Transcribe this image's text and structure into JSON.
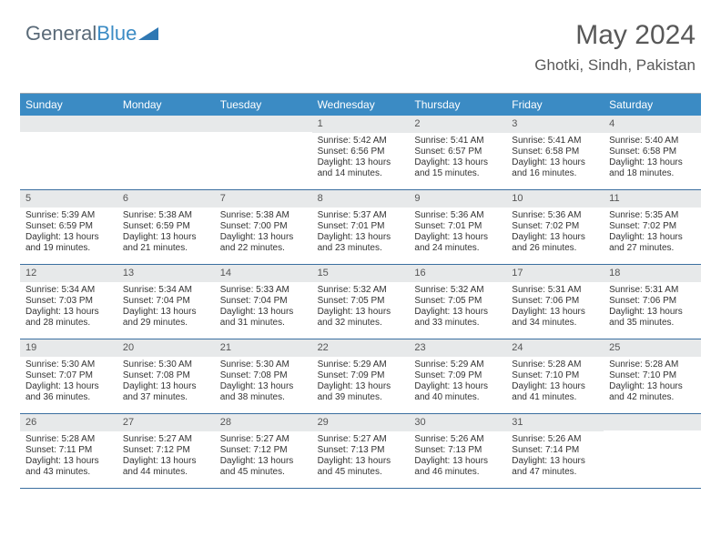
{
  "brand": {
    "part1": "General",
    "part2": "Blue"
  },
  "header": {
    "month_title": "May 2024",
    "location": "Ghotki, Sindh, Pakistan"
  },
  "colors": {
    "header_bg": "#3b8bc4",
    "header_fg": "#ffffff",
    "daynum_bg": "#e7e9ea",
    "cell_border": "#3b6fa0",
    "text": "#333333",
    "title_color": "#585858",
    "logo_grey": "#5a6a78"
  },
  "weekdays": [
    "Sunday",
    "Monday",
    "Tuesday",
    "Wednesday",
    "Thursday",
    "Friday",
    "Saturday"
  ],
  "grid": {
    "columns": 7,
    "rows": 5,
    "first_weekday_index": 3,
    "days_in_month": 31
  },
  "days": [
    {
      "n": 1,
      "sunrise": "5:42 AM",
      "sunset": "6:56 PM",
      "daylight": "13 hours and 14 minutes."
    },
    {
      "n": 2,
      "sunrise": "5:41 AM",
      "sunset": "6:57 PM",
      "daylight": "13 hours and 15 minutes."
    },
    {
      "n": 3,
      "sunrise": "5:41 AM",
      "sunset": "6:58 PM",
      "daylight": "13 hours and 16 minutes."
    },
    {
      "n": 4,
      "sunrise": "5:40 AM",
      "sunset": "6:58 PM",
      "daylight": "13 hours and 18 minutes."
    },
    {
      "n": 5,
      "sunrise": "5:39 AM",
      "sunset": "6:59 PM",
      "daylight": "13 hours and 19 minutes."
    },
    {
      "n": 6,
      "sunrise": "5:38 AM",
      "sunset": "6:59 PM",
      "daylight": "13 hours and 21 minutes."
    },
    {
      "n": 7,
      "sunrise": "5:38 AM",
      "sunset": "7:00 PM",
      "daylight": "13 hours and 22 minutes."
    },
    {
      "n": 8,
      "sunrise": "5:37 AM",
      "sunset": "7:01 PM",
      "daylight": "13 hours and 23 minutes."
    },
    {
      "n": 9,
      "sunrise": "5:36 AM",
      "sunset": "7:01 PM",
      "daylight": "13 hours and 24 minutes."
    },
    {
      "n": 10,
      "sunrise": "5:36 AM",
      "sunset": "7:02 PM",
      "daylight": "13 hours and 26 minutes."
    },
    {
      "n": 11,
      "sunrise": "5:35 AM",
      "sunset": "7:02 PM",
      "daylight": "13 hours and 27 minutes."
    },
    {
      "n": 12,
      "sunrise": "5:34 AM",
      "sunset": "7:03 PM",
      "daylight": "13 hours and 28 minutes."
    },
    {
      "n": 13,
      "sunrise": "5:34 AM",
      "sunset": "7:04 PM",
      "daylight": "13 hours and 29 minutes."
    },
    {
      "n": 14,
      "sunrise": "5:33 AM",
      "sunset": "7:04 PM",
      "daylight": "13 hours and 31 minutes."
    },
    {
      "n": 15,
      "sunrise": "5:32 AM",
      "sunset": "7:05 PM",
      "daylight": "13 hours and 32 minutes."
    },
    {
      "n": 16,
      "sunrise": "5:32 AM",
      "sunset": "7:05 PM",
      "daylight": "13 hours and 33 minutes."
    },
    {
      "n": 17,
      "sunrise": "5:31 AM",
      "sunset": "7:06 PM",
      "daylight": "13 hours and 34 minutes."
    },
    {
      "n": 18,
      "sunrise": "5:31 AM",
      "sunset": "7:06 PM",
      "daylight": "13 hours and 35 minutes."
    },
    {
      "n": 19,
      "sunrise": "5:30 AM",
      "sunset": "7:07 PM",
      "daylight": "13 hours and 36 minutes."
    },
    {
      "n": 20,
      "sunrise": "5:30 AM",
      "sunset": "7:08 PM",
      "daylight": "13 hours and 37 minutes."
    },
    {
      "n": 21,
      "sunrise": "5:30 AM",
      "sunset": "7:08 PM",
      "daylight": "13 hours and 38 minutes."
    },
    {
      "n": 22,
      "sunrise": "5:29 AM",
      "sunset": "7:09 PM",
      "daylight": "13 hours and 39 minutes."
    },
    {
      "n": 23,
      "sunrise": "5:29 AM",
      "sunset": "7:09 PM",
      "daylight": "13 hours and 40 minutes."
    },
    {
      "n": 24,
      "sunrise": "5:28 AM",
      "sunset": "7:10 PM",
      "daylight": "13 hours and 41 minutes."
    },
    {
      "n": 25,
      "sunrise": "5:28 AM",
      "sunset": "7:10 PM",
      "daylight": "13 hours and 42 minutes."
    },
    {
      "n": 26,
      "sunrise": "5:28 AM",
      "sunset": "7:11 PM",
      "daylight": "13 hours and 43 minutes."
    },
    {
      "n": 27,
      "sunrise": "5:27 AM",
      "sunset": "7:12 PM",
      "daylight": "13 hours and 44 minutes."
    },
    {
      "n": 28,
      "sunrise": "5:27 AM",
      "sunset": "7:12 PM",
      "daylight": "13 hours and 45 minutes."
    },
    {
      "n": 29,
      "sunrise": "5:27 AM",
      "sunset": "7:13 PM",
      "daylight": "13 hours and 45 minutes."
    },
    {
      "n": 30,
      "sunrise": "5:26 AM",
      "sunset": "7:13 PM",
      "daylight": "13 hours and 46 minutes."
    },
    {
      "n": 31,
      "sunrise": "5:26 AM",
      "sunset": "7:14 PM",
      "daylight": "13 hours and 47 minutes."
    }
  ],
  "labels": {
    "sunrise": "Sunrise:",
    "sunset": "Sunset:",
    "daylight": "Daylight:"
  }
}
